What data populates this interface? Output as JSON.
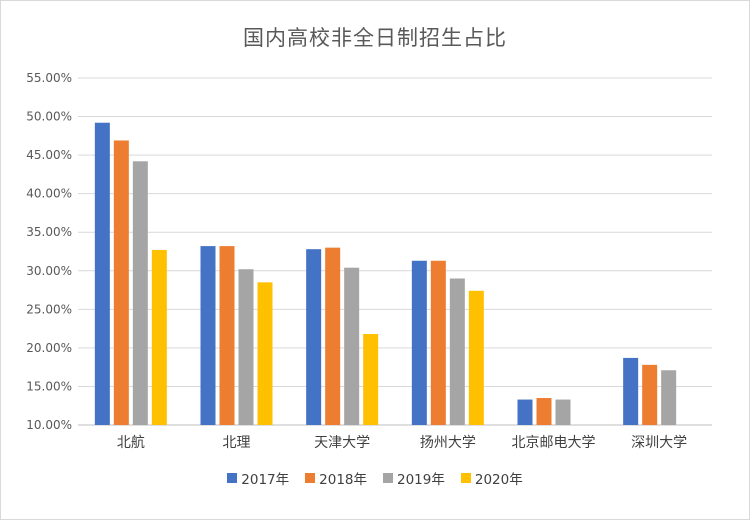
{
  "chart_data": {
    "type": "bar",
    "title": "国内高校非全日制招生占比",
    "categories": [
      "北航",
      "北理",
      "天津大学",
      "扬州大学",
      "北京邮电大学",
      "深圳大学"
    ],
    "series": [
      {
        "name": "2017年",
        "color": "#4472C4",
        "values": [
          49.2,
          33.2,
          32.8,
          31.3,
          13.3,
          18.7
        ]
      },
      {
        "name": "2018年",
        "color": "#ED7D31",
        "values": [
          46.9,
          33.2,
          33.0,
          31.3,
          13.5,
          17.8
        ]
      },
      {
        "name": "2019年",
        "color": "#A5A5A5",
        "values": [
          44.2,
          30.2,
          30.4,
          29.0,
          13.3,
          17.1
        ]
      },
      {
        "name": "2020年",
        "color": "#FFC000",
        "values": [
          32.7,
          28.5,
          21.8,
          27.4,
          null,
          null
        ]
      }
    ],
    "y_ticks": [
      "10.00%",
      "15.00%",
      "20.00%",
      "25.00%",
      "30.00%",
      "35.00%",
      "40.00%",
      "45.00%",
      "50.00%",
      "55.00%"
    ],
    "ylim": [
      10,
      55
    ],
    "grid": true,
    "legend_position": "bottom"
  }
}
